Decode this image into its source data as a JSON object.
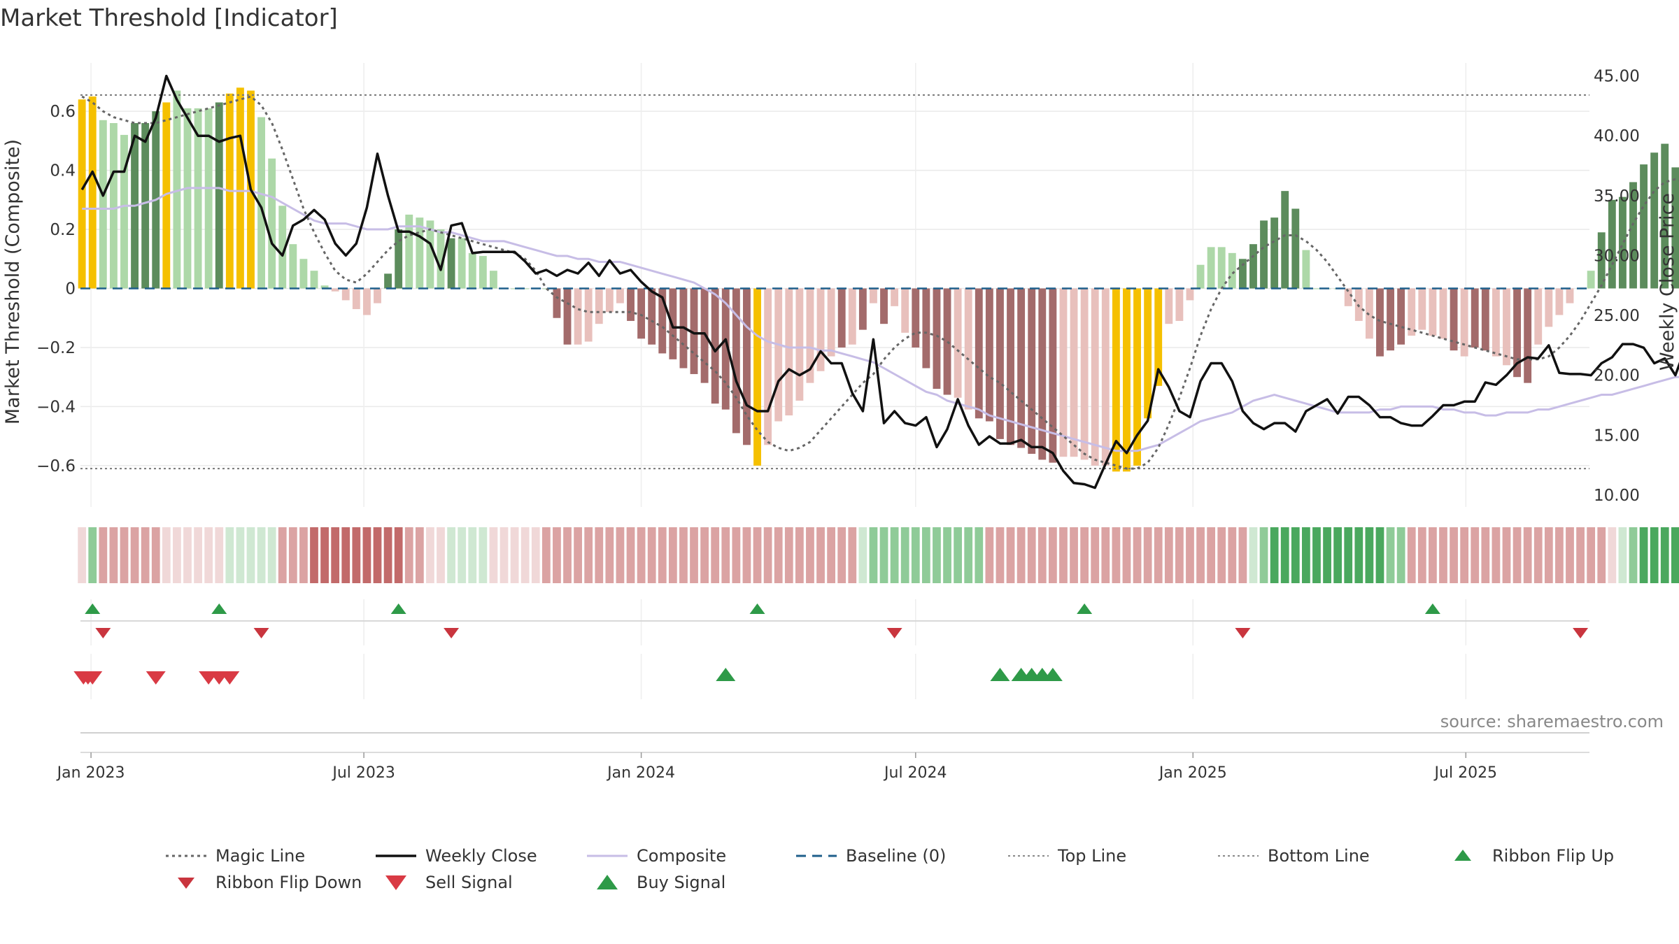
{
  "title": "Market Threshold [Indicator]",
  "source_note": "source: sharemaestro.com",
  "chart_data": {
    "type": "bar",
    "x_type": "time",
    "x_range": [
      "2022-12-25",
      "2025-09-21"
    ],
    "x_ticks": [
      {
        "date": "2023-01-01",
        "label": "Jan 2023"
      },
      {
        "date": "2023-07-01",
        "label": "Jul 2023"
      },
      {
        "date": "2024-01-01",
        "label": "Jan 2024"
      },
      {
        "date": "2024-07-01",
        "label": "Jul 2024"
      },
      {
        "date": "2025-01-01",
        "label": "Jan 2025"
      },
      {
        "date": "2025-07-01",
        "label": "Jul 2025"
      }
    ],
    "y_left": {
      "label": "Market Threshold (Composite)",
      "ylim": [
        -0.74,
        0.74
      ],
      "ticks": [
        0.6,
        0.4,
        0.2,
        0,
        -0.2,
        -0.4,
        -0.6
      ],
      "tick_labels": [
        "0.6",
        "0.4",
        "0.2",
        "0",
        "−0.2",
        "−0.4",
        "−0.6"
      ]
    },
    "y_right": {
      "label": "Weekly Close Price",
      "ylim": [
        9,
        45.5
      ],
      "ticks": [
        45,
        40,
        35,
        30,
        25,
        20,
        15,
        10
      ],
      "tick_labels": [
        "45.00",
        "40.00",
        "35.00",
        "30.00",
        "25.00",
        "20.00",
        "15.00",
        "10.00"
      ]
    },
    "grid": true,
    "start_week": "2022-12-26",
    "colors": {
      "strong_pos": "#5c8c5c",
      "weak_pos": "#add8a8",
      "strong_neg": "#a36b6b",
      "weak_neg": "#e8c0bc",
      "extreme": "#f5c000",
      "magic_line": "#666666",
      "weekly_close": "#111111",
      "composite_line": "#c7bde6",
      "baseline": "#1f5f8b",
      "ref_lines": "#777777",
      "buy": "#2e9a48",
      "sell": "#d93a44"
    },
    "ref_lines": {
      "top": 0.655,
      "bottom": -0.61,
      "baseline": 0
    },
    "bars": [
      0.64,
      0.65,
      0.57,
      0.56,
      0.52,
      0.56,
      0.56,
      0.6,
      0.63,
      0.67,
      0.61,
      0.61,
      0.61,
      0.63,
      0.66,
      0.68,
      0.67,
      0.58,
      0.44,
      0.28,
      0.15,
      0.1,
      0.06,
      0.01,
      -0.01,
      -0.04,
      -0.07,
      -0.09,
      -0.05,
      0.05,
      0.2,
      0.25,
      0.24,
      0.23,
      0.2,
      0.17,
      0.17,
      0.12,
      0.11,
      0.06,
      0,
      0,
      0,
      0,
      0,
      -0.1,
      -0.19,
      -0.19,
      -0.18,
      -0.12,
      -0.08,
      -0.05,
      -0.11,
      -0.17,
      -0.19,
      -0.22,
      -0.24,
      -0.27,
      -0.29,
      -0.32,
      -0.39,
      -0.41,
      -0.49,
      -0.53,
      -0.6,
      -0.53,
      -0.45,
      -0.43,
      -0.38,
      -0.32,
      -0.28,
      -0.23,
      -0.2,
      -0.19,
      -0.14,
      -0.05,
      -0.12,
      -0.06,
      -0.15,
      -0.2,
      -0.27,
      -0.34,
      -0.36,
      -0.37,
      -0.41,
      -0.44,
      -0.45,
      -0.51,
      -0.53,
      -0.54,
      -0.56,
      -0.58,
      -0.59,
      -0.57,
      -0.57,
      -0.58,
      -0.6,
      -0.6,
      -0.62,
      -0.62,
      -0.6,
      -0.44,
      -0.33,
      -0.12,
      -0.11,
      -0.04,
      0.08,
      0.14,
      0.14,
      0.12,
      0.1,
      0.15,
      0.23,
      0.24,
      0.33,
      0.27,
      0.13,
      0,
      0,
      0,
      -0.06,
      -0.11,
      -0.17,
      -0.23,
      -0.21,
      -0.19,
      -0.16,
      -0.14,
      -0.16,
      -0.17,
      -0.21,
      -0.23,
      -0.2,
      -0.21,
      -0.23,
      -0.26,
      -0.3,
      -0.32,
      -0.19,
      -0.13,
      -0.09,
      -0.05,
      0,
      0.06,
      0.19,
      0.3,
      0.31,
      0.36,
      0.42,
      0.46,
      0.49,
      0.41,
      0.34,
      0.23,
      0.08,
      0.06,
      0.02
    ],
    "bar_classes": [
      "x",
      "x",
      "w",
      "w",
      "w",
      "s",
      "s",
      "s",
      "x",
      "w",
      "w",
      "w",
      "w",
      "s",
      "x",
      "x",
      "x",
      "w",
      "w",
      "w",
      "w",
      "w",
      "w",
      "w",
      "w",
      "n",
      "n",
      "n",
      "w",
      "s",
      "s",
      "w",
      "w",
      "w",
      "w",
      "s",
      "w",
      "w",
      "w",
      "w",
      "w",
      "w",
      "w",
      "w",
      "w",
      "s",
      "s",
      "w",
      "w",
      "w",
      "w",
      "w",
      "s",
      "s",
      "s",
      "s",
      "s",
      "s",
      "s",
      "s",
      "s",
      "s",
      "s",
      "s",
      "x",
      "w",
      "w",
      "w",
      "w",
      "w",
      "w",
      "w",
      "s",
      "w",
      "s",
      "w",
      "s",
      "w",
      "w",
      "s",
      "s",
      "s",
      "s",
      "w",
      "w",
      "s",
      "s",
      "s",
      "s",
      "s",
      "s",
      "s",
      "s",
      "w",
      "w",
      "w",
      "w",
      "w",
      "x",
      "x",
      "x",
      "x",
      "x",
      "w",
      "w",
      "w",
      "w",
      "w",
      "w",
      "w",
      "s",
      "s",
      "s",
      "s",
      "s",
      "s",
      "w",
      "w",
      "w",
      "w",
      "n",
      "n",
      "n",
      "s",
      "s",
      "s",
      "w",
      "w",
      "w",
      "w",
      "s",
      "w",
      "s",
      "s",
      "w",
      "w",
      "s",
      "s",
      "n",
      "w",
      "w",
      "w",
      "w",
      "w",
      "s",
      "s",
      "s",
      "s",
      "s",
      "s",
      "s",
      "s",
      "w",
      "w",
      "w",
      "w",
      "w"
    ],
    "magic_line": [
      0.65,
      0.63,
      0.6,
      0.58,
      0.57,
      0.56,
      0.56,
      0.56,
      0.57,
      0.58,
      0.59,
      0.6,
      0.61,
      0.62,
      0.63,
      0.64,
      0.65,
      0.62,
      0.56,
      0.47,
      0.37,
      0.27,
      0.19,
      0.12,
      0.06,
      0.03,
      0.02,
      0.05,
      0.09,
      0.13,
      0.16,
      0.18,
      0.19,
      0.2,
      0.19,
      0.18,
      0.17,
      0.16,
      0.15,
      0.14,
      0.13,
      0.12,
      0.1,
      0.06,
      0.0,
      -0.03,
      -0.05,
      -0.07,
      -0.08,
      -0.08,
      -0.08,
      -0.08,
      -0.08,
      -0.09,
      -0.11,
      -0.13,
      -0.16,
      -0.19,
      -0.22,
      -0.25,
      -0.28,
      -0.32,
      -0.37,
      -0.43,
      -0.48,
      -0.52,
      -0.54,
      -0.55,
      -0.54,
      -0.52,
      -0.48,
      -0.44,
      -0.4,
      -0.36,
      -0.32,
      -0.29,
      -0.24,
      -0.2,
      -0.17,
      -0.15,
      -0.15,
      -0.16,
      -0.18,
      -0.21,
      -0.24,
      -0.27,
      -0.3,
      -0.32,
      -0.35,
      -0.38,
      -0.41,
      -0.44,
      -0.47,
      -0.5,
      -0.53,
      -0.56,
      -0.58,
      -0.59,
      -0.6,
      -0.61,
      -0.61,
      -0.59,
      -0.54,
      -0.46,
      -0.37,
      -0.27,
      -0.16,
      -0.07,
      0.0,
      0.05,
      0.08,
      0.11,
      0.14,
      0.16,
      0.18,
      0.18,
      0.16,
      0.13,
      0.09,
      0.04,
      -0.01,
      -0.06,
      -0.09,
      -0.11,
      -0.12,
      -0.13,
      -0.14,
      -0.15,
      -0.16,
      -0.17,
      -0.18,
      -0.19,
      -0.2,
      -0.21,
      -0.22,
      -0.23,
      -0.24,
      -0.24,
      -0.24,
      -0.23,
      -0.2,
      -0.16,
      -0.11,
      -0.05,
      0.01,
      0.08,
      0.15,
      0.22,
      0.28,
      0.33,
      0.36,
      0.37,
      0.36,
      0.33,
      0.28,
      0.23,
      0.19
    ],
    "weekly_close": [
      35.5,
      37,
      35,
      37,
      37,
      40,
      39.5,
      41.5,
      45,
      43,
      41.5,
      40,
      40,
      39.5,
      39.8,
      40,
      35.5,
      34,
      31,
      30,
      32.5,
      33,
      33.8,
      33,
      31,
      30,
      31,
      34,
      38.5,
      35,
      32,
      32,
      31.6,
      31,
      28.8,
      32.5,
      32.7,
      30.2,
      30.3,
      30.3,
      30.3,
      30.3,
      29.5,
      28.5,
      28.8,
      28.3,
      28.8,
      28.5,
      29.4,
      28.3,
      29.6,
      28.5,
      28.8,
      27.8,
      27,
      26.5,
      24,
      24,
      23.5,
      23.5,
      22,
      23,
      19.5,
      17.5,
      17,
      17,
      19.5,
      20.5,
      20,
      20.5,
      22,
      21,
      21,
      18.5,
      17,
      23,
      16,
      17,
      16,
      15.8,
      16.5,
      14,
      15.5,
      18,
      15.8,
      14.2,
      14.9,
      14.3,
      14.3,
      14.6,
      14,
      14,
      13.5,
      12,
      11,
      10.9,
      10.6,
      12.6,
      14.5,
      13.5,
      15,
      16.2,
      20.5,
      19,
      17,
      16.5,
      19.5,
      21,
      21,
      19.5,
      17,
      16,
      15.5,
      16,
      16,
      15.3,
      17,
      17.5,
      18,
      16.8,
      18.2,
      18.2,
      17.5,
      16.5,
      16.5,
      16,
      15.8,
      15.8,
      16.6,
      17.5,
      17.5,
      17.8,
      17.8,
      19.4,
      19.2,
      20,
      21,
      21.5,
      21.4,
      22.5,
      20.2,
      20.1,
      20.1,
      20,
      21,
      21.5,
      22.6,
      22.6,
      22.3,
      21,
      21.4,
      20,
      22.4,
      22
    ],
    "composite_line": [
      0.27,
      0.27,
      0.27,
      0.27,
      0.28,
      0.28,
      0.29,
      0.3,
      0.32,
      0.33,
      0.34,
      0.34,
      0.34,
      0.34,
      0.33,
      0.33,
      0.33,
      0.32,
      0.31,
      0.29,
      0.27,
      0.25,
      0.23,
      0.22,
      0.22,
      0.22,
      0.21,
      0.2,
      0.2,
      0.2,
      0.21,
      0.21,
      0.21,
      0.2,
      0.19,
      0.19,
      0.18,
      0.17,
      0.16,
      0.16,
      0.16,
      0.15,
      0.14,
      0.13,
      0.12,
      0.11,
      0.11,
      0.1,
      0.1,
      0.09,
      0.09,
      0.09,
      0.08,
      0.07,
      0.06,
      0.05,
      0.04,
      0.03,
      0.02,
      0.0,
      -0.02,
      -0.05,
      -0.09,
      -0.13,
      -0.16,
      -0.18,
      -0.19,
      -0.2,
      -0.2,
      -0.2,
      -0.21,
      -0.21,
      -0.22,
      -0.23,
      -0.24,
      -0.25,
      -0.27,
      -0.29,
      -0.31,
      -0.33,
      -0.35,
      -0.36,
      -0.38,
      -0.39,
      -0.4,
      -0.41,
      -0.43,
      -0.44,
      -0.45,
      -0.46,
      -0.47,
      -0.48,
      -0.49,
      -0.5,
      -0.51,
      -0.52,
      -0.53,
      -0.54,
      -0.55,
      -0.55,
      -0.55,
      -0.54,
      -0.53,
      -0.51,
      -0.49,
      -0.47,
      -0.45,
      -0.44,
      -0.43,
      -0.42,
      -0.4,
      -0.38,
      -0.37,
      -0.36,
      -0.37,
      -0.38,
      -0.39,
      -0.4,
      -0.41,
      -0.42,
      -0.42,
      -0.42,
      -0.42,
      -0.41,
      -0.41,
      -0.4,
      -0.4,
      -0.4,
      -0.4,
      -0.41,
      -0.41,
      -0.42,
      -0.42,
      -0.43,
      -0.43,
      -0.42,
      -0.42,
      -0.42,
      -0.41,
      -0.41,
      -0.4,
      -0.39,
      -0.38,
      -0.37,
      -0.36,
      -0.36,
      -0.35,
      -0.34,
      -0.33,
      -0.32,
      -0.31,
      -0.3,
      -0.3,
      -0.3,
      -0.29,
      -0.29,
      -0.28
    ],
    "ribbon": [
      -1,
      2,
      -2,
      -2,
      -2,
      -2,
      -2,
      -2,
      -1,
      -1,
      -1,
      -1,
      -1,
      -1,
      1,
      1,
      1,
      1,
      1,
      -2,
      -2,
      -2,
      -3,
      -3,
      -3,
      -3,
      -3,
      -3,
      -3,
      -3,
      -3,
      -2,
      -2,
      -1,
      -1,
      1,
      1,
      1,
      1,
      -1,
      -1,
      -1,
      -1,
      -1,
      -2,
      -2,
      -2,
      -2,
      -2,
      -2,
      -2,
      -2,
      -2,
      -2,
      -2,
      -2,
      -2,
      -2,
      -2,
      -2,
      -2,
      -2,
      -2,
      -2,
      -2,
      -2,
      -2,
      -2,
      -2,
      -2,
      -2,
      -2,
      -2,
      -2,
      1,
      2,
      2,
      2,
      2,
      2,
      2,
      2,
      2,
      2,
      2,
      2,
      -2,
      -2,
      -2,
      -2,
      -2,
      -2,
      -2,
      -2,
      -2,
      -2,
      -2,
      -2,
      -2,
      -2,
      -2,
      -2,
      -2,
      -2,
      -2,
      -2,
      -2,
      -2,
      -2,
      -2,
      -2,
      1,
      2,
      3,
      3,
      3,
      3,
      3,
      3,
      3,
      3,
      3,
      3,
      3,
      2,
      2,
      -2,
      -2,
      -2,
      -2,
      -2,
      -2,
      -2,
      -2,
      -2,
      -2,
      -2,
      -2,
      -2,
      -2,
      -2,
      -2,
      -2,
      -2,
      -2,
      -1,
      1,
      2,
      3,
      3,
      3,
      3,
      3,
      3,
      3,
      3,
      3,
      3,
      3,
      2,
      2,
      1,
      -1
    ],
    "ribbon_flip_up": [
      "2023-01-02",
      "2023-03-27",
      "2023-07-24",
      "2024-03-18",
      "2024-10-21",
      "2025-06-09"
    ],
    "ribbon_flip_down": [
      "2023-01-09",
      "2023-04-24",
      "2023-08-28",
      "2024-06-17",
      "2025-02-03",
      "2025-09-15"
    ],
    "sell_signal": [
      "2022-12-27",
      "2022-12-30",
      "2023-01-02",
      "2023-02-13",
      "2023-03-20",
      "2023-03-27",
      "2023-04-03"
    ],
    "buy_signal": [
      "2024-02-26",
      "2024-08-26",
      "2024-09-09",
      "2024-09-16",
      "2024-09-23",
      "2024-09-30"
    ],
    "legend": [
      {
        "label": "Magic Line",
        "kind": "dotted",
        "color": "#666666"
      },
      {
        "label": "Weekly Close",
        "kind": "solid",
        "color": "#111111"
      },
      {
        "label": "Composite",
        "kind": "solid-light",
        "color": "#c7bde6"
      },
      {
        "label": "Baseline (0)",
        "kind": "dashed",
        "color": "#1f5f8b"
      },
      {
        "label": "Top Line",
        "kind": "dotted-thin",
        "color": "#888888"
      },
      {
        "label": "Bottom Line",
        "kind": "dotted-thin",
        "color": "#888888"
      },
      {
        "label": "Ribbon Flip Up",
        "kind": "tri-up",
        "color": "#2e9a48"
      },
      {
        "label": "Ribbon Flip Down",
        "kind": "tri-down",
        "color": "#c9353e"
      },
      {
        "label": "Sell Signal",
        "kind": "tri-down-big",
        "color": "#d93a44"
      },
      {
        "label": "Buy Signal",
        "kind": "tri-up-big",
        "color": "#2e9a48"
      }
    ]
  }
}
